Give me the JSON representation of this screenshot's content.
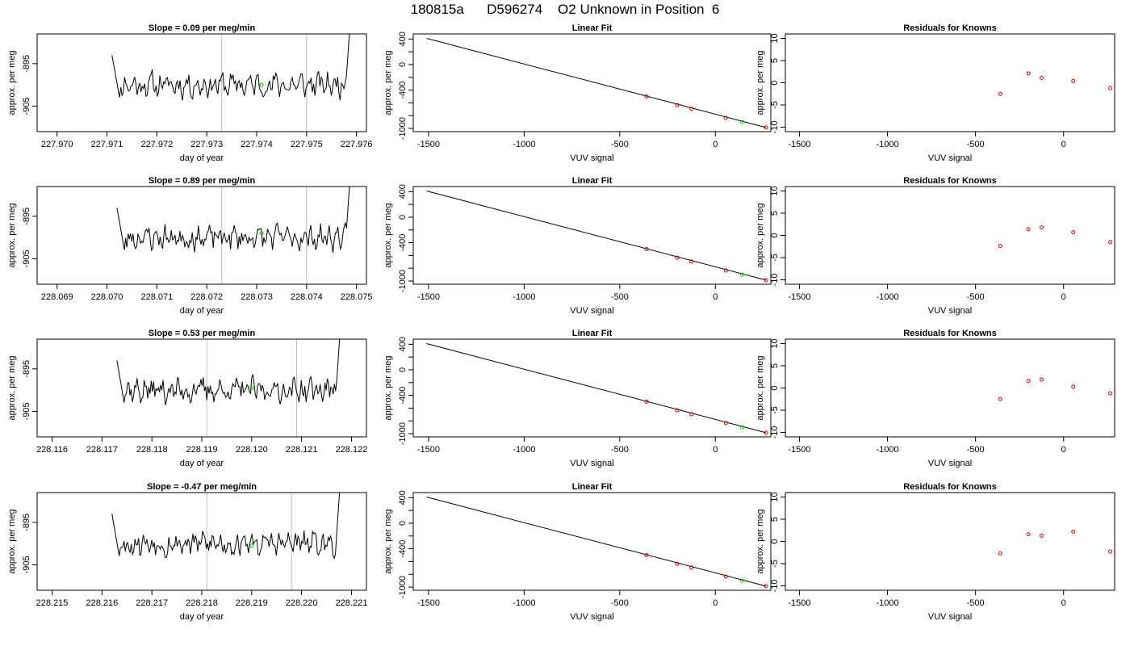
{
  "page_title": "180815a      D596274    O2 Unknown in Position  6",
  "colors": {
    "trace": "#000000",
    "known_point": "#cc0000",
    "unknown_point": "#00cc00",
    "window_line": "#bbbbbb"
  },
  "chart_data": [
    {
      "type": "line",
      "title": "Slope =  0.09  per meg/min",
      "xlabel": "day of year",
      "ylabel": "approx. per meg",
      "xlim": [
        227.9696,
        227.9762
      ],
      "ylim": [
        -911,
        -888
      ],
      "xticks": [
        "227.970",
        "227.971",
        "227.972",
        "227.973",
        "227.974",
        "227.975",
        "227.976"
      ],
      "yticks": [
        "-895",
        "-905"
      ],
      "window_lines": [
        227.9733,
        227.975
      ],
      "unknown_point": [
        227.9741,
        -900.0
      ],
      "trace": {
        "x_start": 227.9711,
        "x_end": 227.9759,
        "seed": 11
      }
    },
    {
      "type": "line",
      "title": "Linear Fit",
      "xlabel": "VUV signal",
      "ylabel": "approx. per meg",
      "xlim": [
        -1580,
        290
      ],
      "ylim": [
        -1050,
        480
      ],
      "xticks": [
        "-1500",
        "-1000",
        "-500",
        "0"
      ],
      "yticks": [
        "400",
        "0",
        "-400",
        "-1000"
      ],
      "line": [
        [
          -1510,
          410
        ],
        [
          265,
          -985
        ]
      ],
      "known_points": [
        [
          -360,
          -500
        ],
        [
          -200,
          -635
        ],
        [
          -125,
          -695
        ],
        [
          55,
          -835
        ],
        [
          265,
          -985
        ]
      ],
      "unknown_points": [
        [
          140,
          -900
        ]
      ]
    },
    {
      "type": "scatter",
      "title": "Residuals for Knowns",
      "xlabel": "VUV signal",
      "ylabel": "approx. per meg",
      "xlim": [
        -1580,
        290
      ],
      "ylim": [
        -11,
        11
      ],
      "xticks": [
        "-1500",
        "-1000",
        "-500",
        "0"
      ],
      "yticks": [
        "10",
        "5",
        "0",
        "-5",
        "-10"
      ],
      "points": [
        [
          -360,
          -2.5
        ],
        [
          -200,
          2.1
        ],
        [
          -125,
          1.1
        ],
        [
          55,
          0.4
        ],
        [
          265,
          -1.2
        ]
      ]
    },
    {
      "type": "line",
      "title": "Slope =  0.89  per meg/min",
      "xlabel": "day of year",
      "ylabel": "approx. per meg",
      "xlim": [
        228.0686,
        228.0752
      ],
      "ylim": [
        -911,
        -888
      ],
      "xticks": [
        "228.069",
        "228.070",
        "228.071",
        "228.072",
        "228.073",
        "228.074",
        "228.075"
      ],
      "yticks": [
        "-895",
        "-905"
      ],
      "window_lines": [
        228.0723,
        228.074
      ],
      "unknown_point": [
        228.0731,
        -899.0
      ],
      "trace": {
        "x_start": 228.0702,
        "x_end": 228.0749,
        "seed": 23
      }
    },
    {
      "type": "line",
      "title": "Linear Fit",
      "xlabel": "VUV signal",
      "ylabel": "approx. per meg",
      "xlim": [
        -1580,
        290
      ],
      "ylim": [
        -1050,
        480
      ],
      "xticks": [
        "-1500",
        "-1000",
        "-500",
        "0"
      ],
      "yticks": [
        "400",
        "0",
        "-400",
        "-1000"
      ],
      "line": [
        [
          -1510,
          410
        ],
        [
          265,
          -985
        ]
      ],
      "known_points": [
        [
          -360,
          -500
        ],
        [
          -200,
          -635
        ],
        [
          -125,
          -695
        ],
        [
          55,
          -835
        ],
        [
          265,
          -985
        ]
      ],
      "unknown_points": [
        [
          140,
          -900
        ]
      ]
    },
    {
      "type": "scatter",
      "title": "Residuals for Knowns",
      "xlabel": "VUV signal",
      "ylabel": "approx. per meg",
      "xlim": [
        -1580,
        290
      ],
      "ylim": [
        -11,
        11
      ],
      "xticks": [
        "-1500",
        "-1000",
        "-500",
        "0"
      ],
      "yticks": [
        "10",
        "5",
        "0",
        "-5",
        "-10"
      ],
      "points": [
        [
          -360,
          -2.4
        ],
        [
          -200,
          1.4
        ],
        [
          -125,
          1.8
        ],
        [
          55,
          0.7
        ],
        [
          265,
          -1.5
        ]
      ]
    },
    {
      "type": "line",
      "title": "Slope =  0.53  per meg/min",
      "xlabel": "day of year",
      "ylabel": "approx. per meg",
      "xlim": [
        228.1157,
        228.1223
      ],
      "ylim": [
        -911,
        -888
      ],
      "xticks": [
        "228.116",
        "228.117",
        "228.118",
        "228.119",
        "228.120",
        "228.121",
        "228.122"
      ],
      "yticks": [
        "-895",
        "-905"
      ],
      "window_lines": [
        228.1191,
        228.1209
      ],
      "unknown_point": [
        228.12,
        -899.5
      ],
      "trace": {
        "x_start": 228.1173,
        "x_end": 228.1218,
        "seed": 37
      }
    },
    {
      "type": "line",
      "title": "Linear Fit",
      "xlabel": "VUV signal",
      "ylabel": "approx. per meg",
      "xlim": [
        -1580,
        290
      ],
      "ylim": [
        -1050,
        480
      ],
      "xticks": [
        "-1500",
        "-1000",
        "-500",
        "0"
      ],
      "yticks": [
        "400",
        "0",
        "-400",
        "-1000"
      ],
      "line": [
        [
          -1510,
          410
        ],
        [
          265,
          -985
        ]
      ],
      "known_points": [
        [
          -360,
          -500
        ],
        [
          -200,
          -635
        ],
        [
          -125,
          -695
        ],
        [
          55,
          -835
        ],
        [
          265,
          -985
        ]
      ],
      "unknown_points": [
        [
          140,
          -900
        ]
      ]
    },
    {
      "type": "scatter",
      "title": "Residuals for Knowns",
      "xlabel": "VUV signal",
      "ylabel": "approx. per meg",
      "xlim": [
        -1580,
        290
      ],
      "ylim": [
        -11,
        11
      ],
      "xticks": [
        "-1500",
        "-1000",
        "-500",
        "0"
      ],
      "yticks": [
        "10",
        "5",
        "0",
        "-5",
        "-10"
      ],
      "points": [
        [
          -360,
          -2.5
        ],
        [
          -200,
          1.6
        ],
        [
          -125,
          1.9
        ],
        [
          55,
          0.3
        ],
        [
          265,
          -1.2
        ]
      ]
    },
    {
      "type": "line",
      "title": "Slope =  -0.47  per meg/min",
      "xlabel": "day of year",
      "ylabel": "approx. per meg",
      "xlim": [
        228.2147,
        228.2213
      ],
      "ylim": [
        -911,
        -888
      ],
      "xticks": [
        "228.215",
        "228.216",
        "228.217",
        "228.218",
        "228.219",
        "228.220",
        "228.221"
      ],
      "yticks": [
        "-895",
        "-905"
      ],
      "window_lines": [
        228.2181,
        228.2198
      ],
      "unknown_point": [
        228.219,
        -900.5
      ],
      "trace": {
        "x_start": 228.2162,
        "x_end": 228.2208,
        "seed": 53
      }
    },
    {
      "type": "line",
      "title": "Linear Fit",
      "xlabel": "VUV signal",
      "ylabel": "approx. per meg",
      "xlim": [
        -1580,
        290
      ],
      "ylim": [
        -1050,
        480
      ],
      "xticks": [
        "-1500",
        "-1000",
        "-500",
        "0"
      ],
      "yticks": [
        "400",
        "0",
        "-400",
        "-1000"
      ],
      "line": [
        [
          -1510,
          410
        ],
        [
          265,
          -985
        ]
      ],
      "known_points": [
        [
          -360,
          -500
        ],
        [
          -200,
          -635
        ],
        [
          -125,
          -695
        ],
        [
          55,
          -835
        ],
        [
          265,
          -985
        ]
      ],
      "unknown_points": [
        [
          140,
          -900
        ]
      ]
    },
    {
      "type": "scatter",
      "title": "Residuals for Knowns",
      "xlabel": "VUV signal",
      "ylabel": "approx. per meg",
      "xlim": [
        -1580,
        290
      ],
      "ylim": [
        -11,
        11
      ],
      "xticks": [
        "-1500",
        "-1000",
        "-500",
        "0"
      ],
      "yticks": [
        "10",
        "5",
        "0",
        "-5",
        "-10"
      ],
      "points": [
        [
          -360,
          -2.7
        ],
        [
          -200,
          1.6
        ],
        [
          -125,
          1.3
        ],
        [
          55,
          2.2
        ],
        [
          265,
          -2.3
        ]
      ]
    }
  ]
}
